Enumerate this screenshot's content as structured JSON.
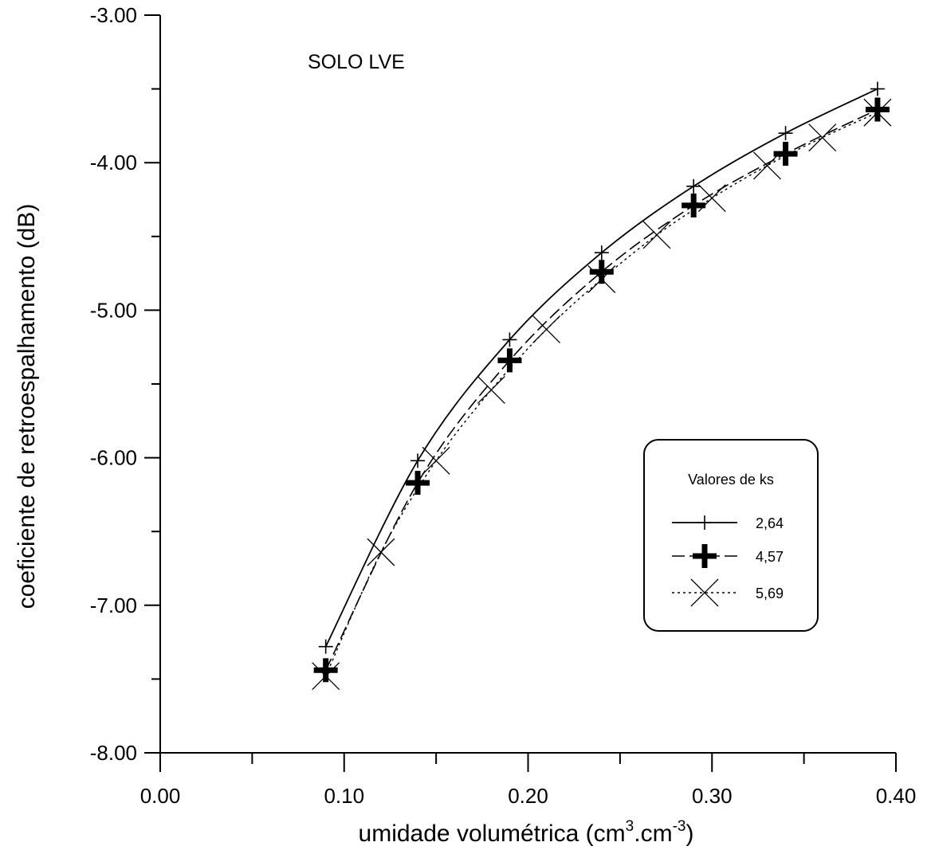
{
  "chart_data": {
    "type": "line",
    "title": "",
    "annotation": "SOLO LVE",
    "xlabel_main": "umidade volumétrica (cm",
    "xlabel_sup1": "3",
    "xlabel_mid": ".cm",
    "xlabel_sup2": "-3",
    "xlabel_end": ")",
    "ylabel": "coeficiente de retroespalhamento (dB)",
    "xlim": [
      0.0,
      0.4
    ],
    "ylim": [
      -8.0,
      -3.0
    ],
    "xticks": [
      0.0,
      0.1,
      0.2,
      0.3,
      0.4
    ],
    "xtick_labels": [
      "0.00",
      "0.10",
      "0.20",
      "0.30",
      "0.40"
    ],
    "yticks": [
      -8.0,
      -7.0,
      -6.0,
      -5.0,
      -4.0,
      -3.0
    ],
    "ytick_labels": [
      "-8.00",
      "-7.00",
      "-6.00",
      "-5.00",
      "-4.00",
      "-3.00"
    ],
    "grid": false,
    "legend": {
      "title": "Valores de ks",
      "placement": "right-middle",
      "entries": [
        "2,64",
        "4,57",
        "5,69"
      ]
    },
    "series": [
      {
        "name": "2,64",
        "marker": "thin-plus",
        "x": [
          0.09,
          0.14,
          0.19,
          0.24,
          0.29,
          0.34,
          0.39
        ],
        "y": [
          -7.28,
          -6.02,
          -5.2,
          -4.61,
          -4.16,
          -3.8,
          -3.5
        ]
      },
      {
        "name": "4,57",
        "marker": "bold-plus",
        "x": [
          0.09,
          0.14,
          0.19,
          0.24,
          0.29,
          0.34,
          0.39
        ],
        "y": [
          -7.44,
          -6.17,
          -5.34,
          -4.74,
          -4.29,
          -3.94,
          -3.64
        ]
      },
      {
        "name": "5,69",
        "marker": "x",
        "x": [
          0.09,
          0.12,
          0.15,
          0.18,
          0.21,
          0.24,
          0.27,
          0.3,
          0.33,
          0.36,
          0.39
        ],
        "y": [
          -7.48,
          -6.64,
          -6.02,
          -5.54,
          -5.13,
          -4.79,
          -4.49,
          -4.24,
          -4.02,
          -3.83,
          -3.66
        ]
      }
    ]
  }
}
